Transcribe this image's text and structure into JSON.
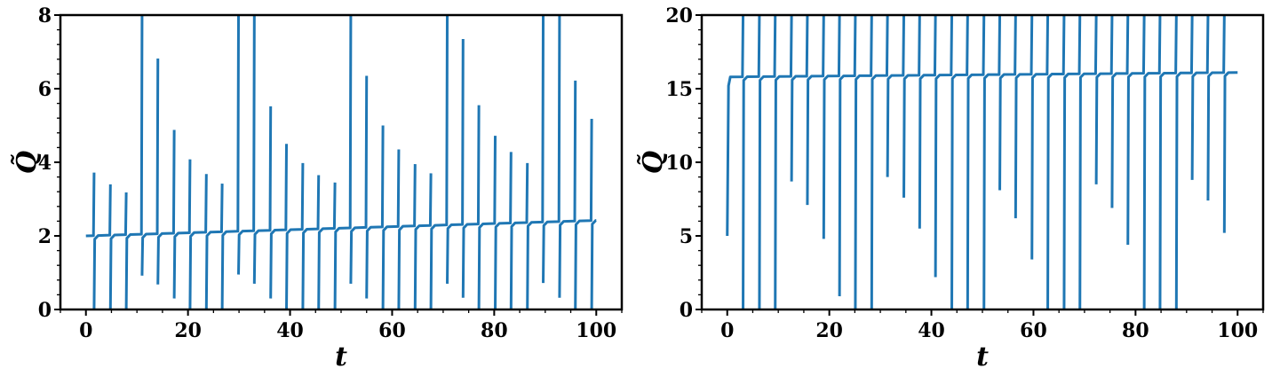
{
  "chart_data": [
    {
      "type": "line",
      "title": "",
      "xlabel": "t",
      "ylabel": "Q̃",
      "xlim": [
        -5,
        105
      ],
      "ylim": [
        0,
        8
      ],
      "xticks": [
        "0",
        "20",
        "40",
        "60",
        "80",
        "100"
      ],
      "xtick_values": [
        0,
        20,
        40,
        60,
        80,
        100
      ],
      "yticks": [
        "0",
        "2",
        "4",
        "6",
        "8"
      ],
      "ytick_values": [
        0,
        2,
        4,
        6,
        8
      ],
      "grid": false,
      "color": "#1f77b4",
      "baseline": {
        "start": 2.0,
        "end": 2.42
      },
      "spikes": [
        {
          "t": 1.6,
          "up": 3.72,
          "down": 0.0
        },
        {
          "t": 4.8,
          "up": 3.4,
          "down": 0.0
        },
        {
          "t": 7.9,
          "up": 3.18,
          "down": 0.0
        },
        {
          "t": 11.0,
          "up": 8.0,
          "down": 0.92
        },
        {
          "t": 14.1,
          "up": 6.82,
          "down": 0.68
        },
        {
          "t": 17.3,
          "up": 4.88,
          "down": 0.3
        },
        {
          "t": 20.4,
          "up": 4.08,
          "down": 0.0
        },
        {
          "t": 23.6,
          "up": 3.68,
          "down": 0.0
        },
        {
          "t": 26.7,
          "up": 3.42,
          "down": 0.0
        },
        {
          "t": 29.9,
          "up": 8.0,
          "down": 0.95
        },
        {
          "t": 33.0,
          "up": 8.0,
          "down": 0.7
        },
        {
          "t": 36.2,
          "up": 5.52,
          "down": 0.3
        },
        {
          "t": 39.3,
          "up": 4.5,
          "down": 0.0
        },
        {
          "t": 42.5,
          "up": 3.98,
          "down": 0.0
        },
        {
          "t": 45.6,
          "up": 3.65,
          "down": 0.0
        },
        {
          "t": 48.8,
          "up": 3.45,
          "down": 0.0
        },
        {
          "t": 51.9,
          "up": 8.0,
          "down": 0.7
        },
        {
          "t": 55.0,
          "up": 6.35,
          "down": 0.3
        },
        {
          "t": 58.2,
          "up": 5.0,
          "down": 0.0
        },
        {
          "t": 61.3,
          "up": 4.35,
          "down": 0.0
        },
        {
          "t": 64.5,
          "up": 3.95,
          "down": 0.0
        },
        {
          "t": 67.6,
          "up": 3.7,
          "down": 0.0
        },
        {
          "t": 70.8,
          "up": 8.0,
          "down": 0.7
        },
        {
          "t": 73.9,
          "up": 7.35,
          "down": 0.32
        },
        {
          "t": 77.0,
          "up": 5.55,
          "down": 0.0
        },
        {
          "t": 80.2,
          "up": 4.72,
          "down": 0.0
        },
        {
          "t": 83.3,
          "up": 4.28,
          "down": 0.0
        },
        {
          "t": 86.5,
          "up": 3.98,
          "down": 0.0
        },
        {
          "t": 89.6,
          "up": 8.0,
          "down": 0.72
        },
        {
          "t": 92.8,
          "up": 8.0,
          "down": 0.32
        },
        {
          "t": 95.9,
          "up": 6.22,
          "down": 0.0
        },
        {
          "t": 99.1,
          "up": 5.18,
          "down": 0.0
        }
      ],
      "t_end": 100.0
    },
    {
      "type": "line",
      "title": "",
      "xlabel": "t",
      "ylabel": "Q̃",
      "xlim": [
        -5,
        105
      ],
      "ylim": [
        0,
        20
      ],
      "xticks": [
        "0",
        "20",
        "40",
        "60",
        "80",
        "100"
      ],
      "xtick_values": [
        0,
        20,
        40,
        60,
        80,
        100
      ],
      "yticks": [
        "0",
        "5",
        "10",
        "15",
        "20"
      ],
      "ytick_values": [
        0,
        5,
        10,
        15,
        20
      ],
      "grid": false,
      "color": "#1f77b4",
      "start_value": 5.0,
      "baseline": {
        "start": 15.8,
        "end": 16.1
      },
      "spikes": [
        {
          "t": 3.1,
          "up": 20.0,
          "down": 0.0
        },
        {
          "t": 6.3,
          "up": 20.0,
          "down": 0.0
        },
        {
          "t": 9.4,
          "up": 20.0,
          "down": 0.0
        },
        {
          "t": 12.6,
          "up": 20.0,
          "down": 8.7
        },
        {
          "t": 15.7,
          "up": 20.0,
          "down": 7.1
        },
        {
          "t": 18.9,
          "up": 20.0,
          "down": 4.8
        },
        {
          "t": 22.0,
          "up": 20.0,
          "down": 0.9
        },
        {
          "t": 25.1,
          "up": 20.0,
          "down": 0.0
        },
        {
          "t": 28.3,
          "up": 20.0,
          "down": 0.0
        },
        {
          "t": 31.4,
          "up": 20.0,
          "down": 9.0
        },
        {
          "t": 34.6,
          "up": 20.0,
          "down": 7.6
        },
        {
          "t": 37.7,
          "up": 20.0,
          "down": 5.5
        },
        {
          "t": 40.8,
          "up": 20.0,
          "down": 2.2
        },
        {
          "t": 44.0,
          "up": 20.0,
          "down": 0.0
        },
        {
          "t": 47.1,
          "up": 20.0,
          "down": 0.0
        },
        {
          "t": 50.3,
          "up": 20.0,
          "down": 0.0
        },
        {
          "t": 53.4,
          "up": 20.0,
          "down": 8.1
        },
        {
          "t": 56.5,
          "up": 20.0,
          "down": 6.2
        },
        {
          "t": 59.7,
          "up": 20.0,
          "down": 3.4
        },
        {
          "t": 62.8,
          "up": 20.0,
          "down": 0.0
        },
        {
          "t": 66.0,
          "up": 20.0,
          "down": 0.0
        },
        {
          "t": 69.1,
          "up": 20.0,
          "down": 0.0
        },
        {
          "t": 72.3,
          "up": 20.0,
          "down": 8.5
        },
        {
          "t": 75.4,
          "up": 20.0,
          "down": 6.9
        },
        {
          "t": 78.5,
          "up": 20.0,
          "down": 4.4
        },
        {
          "t": 81.7,
          "up": 20.0,
          "down": 0.0
        },
        {
          "t": 84.8,
          "up": 20.0,
          "down": 0.0
        },
        {
          "t": 88.0,
          "up": 20.0,
          "down": 0.0
        },
        {
          "t": 91.1,
          "up": 20.0,
          "down": 8.8
        },
        {
          "t": 94.2,
          "up": 20.0,
          "down": 7.4
        },
        {
          "t": 97.4,
          "up": 20.0,
          "down": 5.2
        }
      ],
      "t_end": 100.0
    }
  ]
}
